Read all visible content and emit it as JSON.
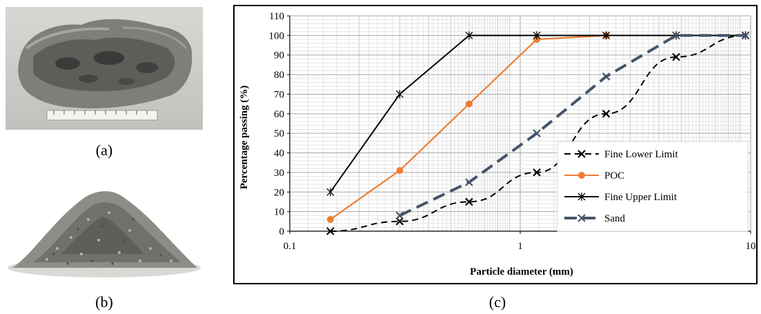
{
  "panels": {
    "a": {
      "caption": "(a)",
      "subject": "porous-rock-photo"
    },
    "b": {
      "caption": "(b)",
      "subject": "crushed-aggregate-pile-photo"
    },
    "c": {
      "caption": "(c)"
    }
  },
  "colors": {
    "fine_lower_limit": "#000000",
    "poc": "#ED7D31",
    "fine_upper_limit": "#000000",
    "sand": "#44546A",
    "grid": "#c8c8c8"
  },
  "chart_data": {
    "type": "line",
    "title": "",
    "xlabel": "Particle diameter (mm)",
    "ylabel": "Percentage passing (%)",
    "xscale": "log",
    "xlim": [
      0.1,
      10
    ],
    "ylim": [
      0,
      110
    ],
    "x_ticks": [
      "0.1",
      "1",
      "10"
    ],
    "y_ticks": [
      "0",
      "10",
      "20",
      "30",
      "40",
      "50",
      "60",
      "70",
      "80",
      "90",
      "100",
      "110"
    ],
    "grid": true,
    "legend_position": "bottom-right",
    "series": [
      {
        "name": "Fine Lower Limit",
        "color": "#000000",
        "dash": "dashed",
        "marker": "x",
        "x": [
          0.15,
          0.3,
          0.6,
          1.18,
          2.36,
          4.75,
          9.5
        ],
        "y": [
          0,
          5,
          15,
          30,
          60,
          89,
          100
        ]
      },
      {
        "name": "POC",
        "color": "#ED7D31",
        "dash": "solid",
        "marker": "circle",
        "x": [
          0.15,
          0.3,
          0.6,
          1.18,
          2.36
        ],
        "y": [
          6,
          31,
          65,
          98,
          100
        ]
      },
      {
        "name": "Fine Upper Limit",
        "color": "#000000",
        "dash": "solid",
        "marker": "star",
        "x": [
          0.15,
          0.3,
          0.6,
          1.18,
          2.36,
          4.75,
          9.5
        ],
        "y": [
          20,
          70,
          100,
          100,
          100,
          100,
          100
        ]
      },
      {
        "name": "Sand",
        "color": "#44546A",
        "dash": "longdash",
        "marker": "x",
        "x": [
          0.3,
          0.6,
          1.18,
          2.36,
          4.75,
          9.5
        ],
        "y": [
          8,
          25,
          50,
          79,
          100,
          100
        ]
      }
    ]
  }
}
